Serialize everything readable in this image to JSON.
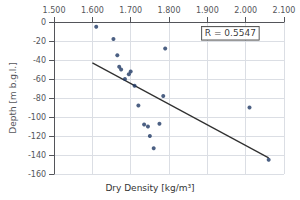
{
  "chart_data": {
    "type": "scatter",
    "xlabel": "Dry Density [kg/m³]",
    "ylabel": "Depth [m b.g.l.]",
    "xlim": [
      1.5,
      2.1
    ],
    "ylim": [
      -160,
      0
    ],
    "xticks": [
      {
        "value": 1.5,
        "label": "1.500"
      },
      {
        "value": 1.6,
        "label": "1.600"
      },
      {
        "value": 1.7,
        "label": "1.700"
      },
      {
        "value": 1.8,
        "label": "1.800"
      },
      {
        "value": 1.9,
        "label": "1.900"
      },
      {
        "value": 2.0,
        "label": "2.000"
      },
      {
        "value": 2.1,
        "label": "2.100"
      }
    ],
    "yticks": [
      0,
      -20,
      -40,
      -60,
      -80,
      -100,
      -120,
      -140,
      -160
    ],
    "grid": true,
    "series": [
      {
        "type": "scatter",
        "color": "#1F3864",
        "x": [
          1.61,
          1.655,
          1.665,
          1.67,
          1.675,
          1.685,
          1.695,
          1.7,
          1.71,
          1.72,
          1.735,
          1.745,
          1.75,
          1.76,
          1.775,
          1.785,
          1.79,
          2.01,
          2.06
        ],
        "values": [
          -5,
          -18,
          -35,
          -47,
          -50,
          -60,
          -55,
          -52,
          -67,
          -88,
          -108,
          -110,
          -120,
          -133,
          -107,
          -78,
          -28,
          -90,
          -145
        ]
      },
      {
        "type": "line",
        "color": "#303030",
        "x": [
          1.6,
          2.06
        ],
        "values": [
          -43,
          -143
        ]
      }
    ],
    "annotations": [
      {
        "text": "R = 0.5547",
        "x": 1.96,
        "y": -5
      }
    ]
  }
}
